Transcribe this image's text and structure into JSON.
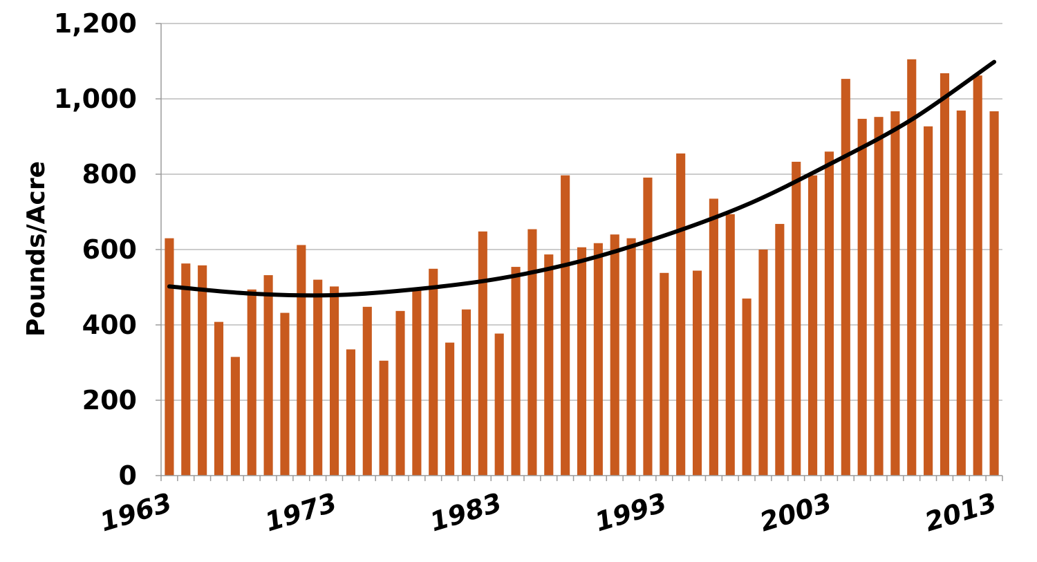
{
  "chart_data": {
    "type": "bar",
    "title": "",
    "xlabel": "",
    "ylabel": "Pounds/Acre",
    "ylim": [
      0,
      1200
    ],
    "yticks": [
      0,
      200,
      400,
      600,
      800,
      1000,
      1200
    ],
    "ytick_labels": [
      "0",
      "200",
      "400",
      "600",
      "800",
      "1,000",
      "1,200"
    ],
    "x_label_years": [
      "1963",
      "1973",
      "1983",
      "1993",
      "2003",
      "2013"
    ],
    "grid": true,
    "bar_color": "#C85A1E",
    "trend_color": "#000000",
    "categories": [
      1963,
      1964,
      1965,
      1966,
      1967,
      1968,
      1969,
      1970,
      1971,
      1972,
      1973,
      1974,
      1975,
      1976,
      1977,
      1978,
      1979,
      1980,
      1981,
      1982,
      1983,
      1984,
      1985,
      1986,
      1987,
      1988,
      1989,
      1990,
      1991,
      1992,
      1993,
      1994,
      1995,
      1996,
      1997,
      1998,
      1999,
      2000,
      2001,
      2002,
      2003,
      2004,
      2005,
      2006,
      2007,
      2008,
      2009,
      2010,
      2011,
      2012,
      2013
    ],
    "values": [
      630,
      563,
      558,
      408,
      315,
      494,
      532,
      432,
      612,
      520,
      502,
      335,
      448,
      305,
      437,
      492,
      549,
      353,
      441,
      648,
      377,
      554,
      654,
      587,
      797,
      606,
      617,
      640,
      630,
      791,
      538,
      855,
      544,
      735,
      694,
      470,
      600,
      668,
      833,
      797,
      860,
      1053,
      947,
      952,
      967,
      1105,
      927,
      1068,
      969,
      1062,
      967
    ],
    "trend": {
      "type": "polynomial",
      "years": [
        1963,
        1968,
        1973,
        1978,
        1983,
        1988,
        1993,
        1998,
        2003,
        2008,
        2013
      ],
      "values": [
        502,
        483,
        479,
        495,
        523,
        570,
        637,
        719,
        826,
        945,
        1098
      ]
    }
  }
}
